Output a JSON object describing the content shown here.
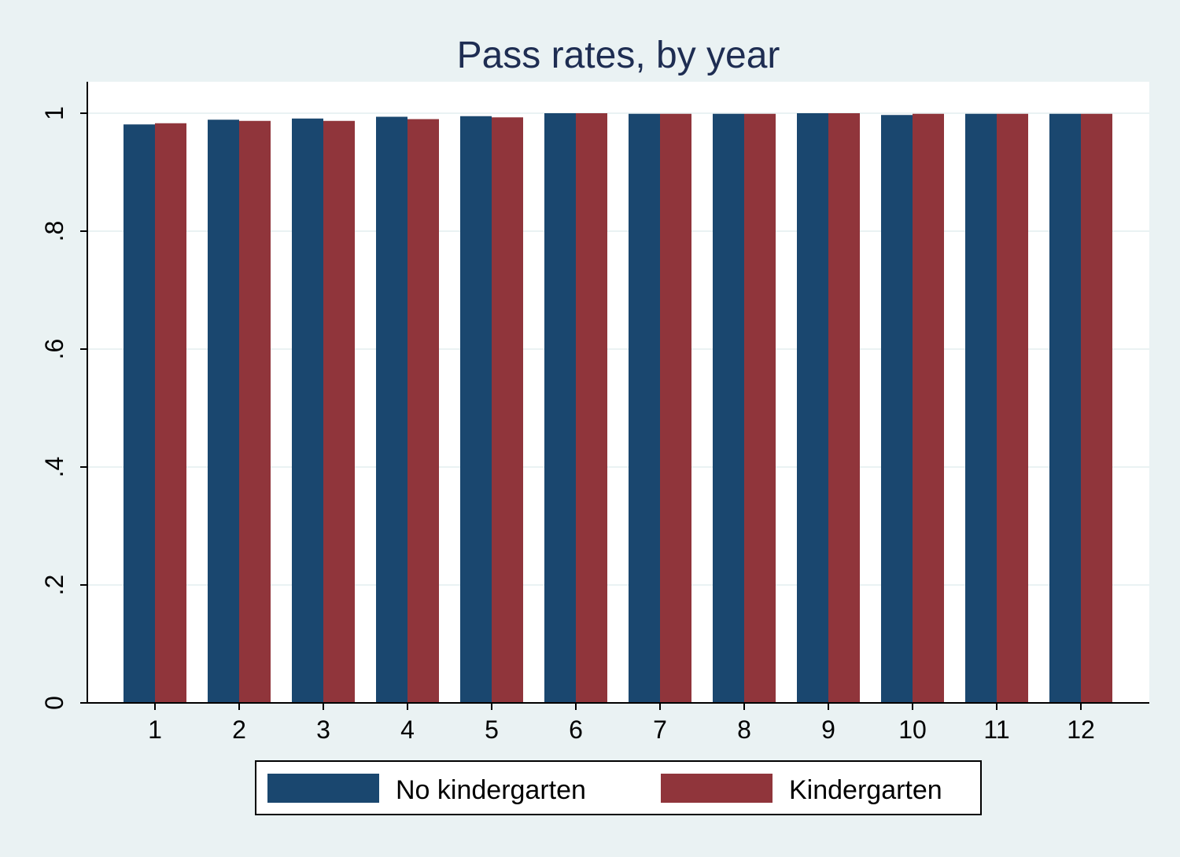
{
  "chart_data": {
    "type": "bar",
    "title": "Pass rates, by year",
    "xlabel": "",
    "ylabel": "",
    "categories": [
      "1",
      "2",
      "3",
      "4",
      "5",
      "6",
      "7",
      "8",
      "9",
      "10",
      "11",
      "12"
    ],
    "series": [
      {
        "name": "No kindergarten",
        "color": "#1a476f",
        "values": [
          0.981,
          0.989,
          0.991,
          0.994,
          0.995,
          1.0,
          0.999,
          0.999,
          1.0,
          0.997,
          0.999,
          0.999
        ]
      },
      {
        "name": "Kindergarten",
        "color": "#90353b",
        "values": [
          0.983,
          0.987,
          0.987,
          0.99,
          0.993,
          1.0,
          0.999,
          0.999,
          1.0,
          0.999,
          0.999,
          0.999
        ]
      }
    ],
    "ylim": [
      0,
      1
    ],
    "yticks": [
      0,
      0.2,
      0.4,
      0.6,
      0.8,
      1.0
    ],
    "ytick_labels": [
      "0",
      ".2",
      ".4",
      ".6",
      ".8",
      "1"
    ],
    "grid": true,
    "legend_position": "bottom",
    "colors": {
      "background": "#eaf2f3",
      "plot_background": "#ffffff",
      "gridline": "#eaf2f3",
      "title": "#1e2d52",
      "axis": "#000000"
    }
  }
}
